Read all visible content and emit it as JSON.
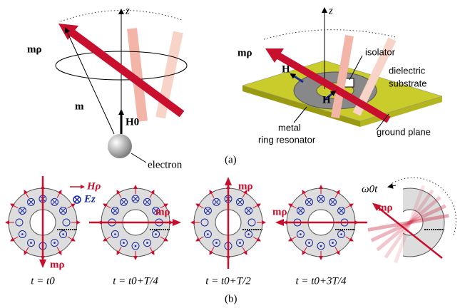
{
  "panel_a": {
    "left": {
      "axis_label": "z",
      "moment_rho": "mρ",
      "moment": "m",
      "field": "H0",
      "electron": "electron"
    },
    "right": {
      "axis_label": "z",
      "moment_rho": "mρ",
      "field_left": "H",
      "field_right": "H",
      "isolator": "isolator",
      "substrate": [
        "dielectric",
        "substrate"
      ],
      "resonator": [
        "metal",
        "ring resonator"
      ],
      "ground": "ground plane"
    },
    "caption": "(a)"
  },
  "panel_b": {
    "legend": {
      "h_rho": "Hρ",
      "ez": "Ez"
    },
    "states": [
      {
        "moment": "mρ",
        "time": "t = t0"
      },
      {
        "moment": "mρ",
        "time": "t = t0+T/4"
      },
      {
        "moment": "mρ",
        "time": "t = t0+T/2"
      },
      {
        "moment": "mρ",
        "time": "t = t0+3T/4"
      }
    ],
    "rotation": {
      "angle": "ω0t",
      "moment": "mρ"
    },
    "caption": "(b)"
  }
}
